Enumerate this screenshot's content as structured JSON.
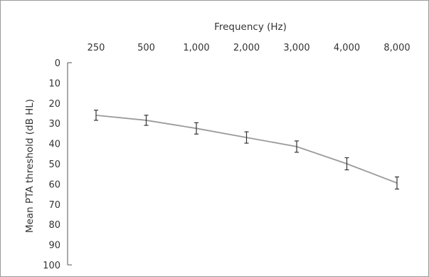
{
  "chart_data": {
    "type": "line",
    "xlabel": "Frequency (Hz)",
    "ylabel": "Mean PTA threshold (dB HL)",
    "categories": [
      "250",
      "500",
      "1,000",
      "2,000",
      "3,000",
      "4,000",
      "8,000"
    ],
    "series": [
      {
        "values": [
          26,
          28.5,
          32.5,
          37,
          41.5,
          50,
          59.5
        ],
        "error": [
          2.5,
          2.5,
          2.8,
          2.8,
          2.8,
          3,
          3
        ],
        "color": "#9b9b9b"
      }
    ],
    "ylim": [
      0,
      100
    ],
    "yticks": [
      0,
      10,
      20,
      30,
      40,
      50,
      60,
      70,
      80,
      90,
      100
    ],
    "y_inverted": true,
    "x_axis_position": "top",
    "grid": false,
    "legend": "none"
  }
}
